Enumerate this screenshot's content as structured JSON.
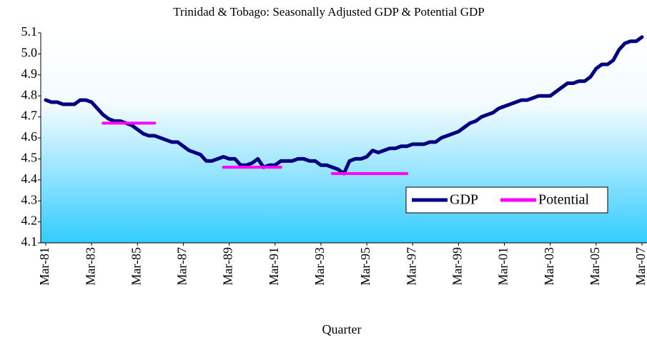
{
  "chart_data": {
    "type": "line",
    "title": "Trinidad & Tobago: Seasonally Adjusted GDP & Potential GDP",
    "x_label": "Quarter",
    "categories": [
      "Mar-81",
      null,
      null,
      null,
      null,
      null,
      null,
      null,
      "Mar-83",
      null,
      null,
      null,
      null,
      null,
      null,
      null,
      "Mar-85",
      null,
      null,
      null,
      null,
      null,
      null,
      null,
      "Mar-87",
      null,
      null,
      null,
      null,
      null,
      null,
      null,
      "Mar-89",
      null,
      null,
      null,
      null,
      null,
      null,
      null,
      "Mar-91",
      null,
      null,
      null,
      null,
      null,
      null,
      null,
      "Mar-93",
      null,
      null,
      null,
      null,
      null,
      null,
      null,
      "Mar-95",
      null,
      null,
      null,
      null,
      null,
      null,
      null,
      "Mar-97",
      null,
      null,
      null,
      null,
      null,
      null,
      null,
      "Mar-99",
      null,
      null,
      null,
      null,
      null,
      null,
      null,
      "Mar-01",
      null,
      null,
      null,
      null,
      null,
      null,
      null,
      "Mar-03",
      null,
      null,
      null,
      null,
      null,
      null,
      null,
      "Mar-05",
      null,
      null,
      null,
      null,
      null,
      null,
      null,
      "Mar-07"
    ],
    "series": [
      {
        "name": "GDP",
        "color": "#000080",
        "values": [
          4.78,
          4.77,
          4.77,
          4.76,
          4.76,
          4.76,
          4.78,
          4.78,
          4.77,
          4.74,
          4.71,
          4.69,
          4.68,
          4.68,
          4.67,
          4.66,
          4.64,
          4.62,
          4.61,
          4.61,
          4.6,
          4.59,
          4.58,
          4.58,
          4.56,
          4.54,
          4.53,
          4.52,
          4.49,
          4.49,
          4.5,
          4.51,
          4.5,
          4.5,
          4.47,
          4.47,
          4.48,
          4.5,
          4.46,
          4.47,
          4.47,
          4.49,
          4.49,
          4.49,
          4.5,
          4.5,
          4.49,
          4.49,
          4.47,
          4.47,
          4.46,
          4.45,
          4.43,
          4.49,
          4.5,
          4.5,
          4.51,
          4.54,
          4.53,
          4.54,
          4.55,
          4.55,
          4.56,
          4.56,
          4.57,
          4.57,
          4.57,
          4.58,
          4.58,
          4.6,
          4.61,
          4.62,
          4.63,
          4.65,
          4.67,
          4.68,
          4.7,
          4.71,
          4.72,
          4.74,
          4.75,
          4.76,
          4.77,
          4.78,
          4.78,
          4.79,
          4.8,
          4.8,
          4.8,
          4.82,
          4.84,
          4.86,
          4.86,
          4.87,
          4.87,
          4.89,
          4.93,
          4.95,
          4.95,
          4.97,
          5.02,
          5.05,
          5.06,
          5.06,
          5.08
        ]
      },
      {
        "name": "Potential",
        "color": "#ff00ff",
        "values": [
          null,
          null,
          null,
          null,
          null,
          null,
          null,
          null,
          null,
          null,
          4.67,
          4.67,
          4.67,
          4.67,
          4.67,
          4.67,
          4.67,
          4.67,
          4.67,
          4.67,
          null,
          null,
          null,
          null,
          null,
          null,
          null,
          null,
          null,
          null,
          null,
          4.46,
          4.46,
          4.46,
          4.46,
          4.46,
          4.46,
          4.46,
          4.46,
          4.46,
          4.46,
          4.46,
          null,
          null,
          null,
          null,
          null,
          null,
          null,
          null,
          4.43,
          4.43,
          4.43,
          4.43,
          4.43,
          4.43,
          4.43,
          4.43,
          4.43,
          4.43,
          4.43,
          4.43,
          4.43,
          4.43,
          null,
          null,
          null,
          null,
          null,
          null,
          null,
          null,
          null,
          null,
          null,
          null,
          null,
          null,
          null,
          null,
          null,
          null,
          null,
          null,
          null,
          null,
          null,
          null,
          null,
          null,
          null,
          null,
          null,
          null,
          null,
          null,
          null,
          null,
          null,
          null,
          null,
          null,
          null,
          null,
          null
        ]
      }
    ],
    "ylim": [
      4.1,
      5.1
    ],
    "yticks": [
      4.1,
      4.2,
      4.3,
      4.4,
      4.5,
      4.6,
      4.7,
      4.8,
      4.9,
      {
        "value": 5,
        "label": "5.0"
      },
      5.1
    ],
    "legend": "lower right"
  }
}
